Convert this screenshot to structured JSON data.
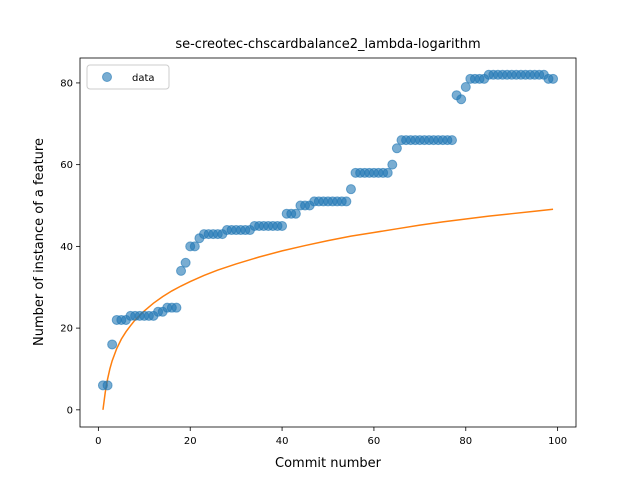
{
  "chart_data": {
    "type": "scatter",
    "title": "se-creotec-chscardbalance2_lambda-logarithm",
    "xlabel": "Commit number",
    "ylabel": "Number of instance of a feature",
    "xlim": [
      -4,
      104
    ],
    "ylim": [
      -4.2,
      86.1
    ],
    "xticks": [
      0,
      20,
      40,
      60,
      80,
      100
    ],
    "yticks": [
      0,
      20,
      40,
      60,
      80
    ],
    "legend": {
      "placement": "top-left",
      "entries": [
        "data"
      ]
    },
    "grid": false,
    "series": [
      {
        "name": "data",
        "kind": "scatter",
        "color": "#1f77b4",
        "x": [
          1,
          2,
          3,
          4,
          5,
          6,
          7,
          8,
          9,
          10,
          11,
          12,
          13,
          14,
          15,
          16,
          17,
          18,
          19,
          20,
          21,
          22,
          23,
          24,
          25,
          26,
          27,
          28,
          29,
          30,
          31,
          32,
          33,
          34,
          35,
          36,
          37,
          38,
          39,
          40,
          41,
          42,
          43,
          44,
          45,
          46,
          47,
          48,
          49,
          50,
          51,
          52,
          53,
          54,
          55,
          56,
          57,
          58,
          59,
          60,
          61,
          62,
          63,
          64,
          65,
          66,
          67,
          68,
          69,
          70,
          71,
          72,
          73,
          74,
          75,
          76,
          77,
          78,
          79,
          80,
          81,
          82,
          83,
          84,
          85,
          86,
          87,
          88,
          89,
          90,
          91,
          92,
          93,
          94,
          95,
          96,
          97,
          98,
          99
        ],
        "y": [
          6,
          6,
          16,
          22,
          22,
          22,
          23,
          23,
          23,
          23,
          23,
          23,
          24,
          24,
          25,
          25,
          25,
          34,
          36,
          40,
          40,
          42,
          43,
          43,
          43,
          43,
          43,
          44,
          44,
          44,
          44,
          44,
          44,
          45,
          45,
          45,
          45,
          45,
          45,
          45,
          48,
          48,
          48,
          50,
          50,
          50,
          51,
          51,
          51,
          51,
          51,
          51,
          51,
          51,
          54,
          58,
          58,
          58,
          58,
          58,
          58,
          58,
          58,
          60,
          64,
          66,
          66,
          66,
          66,
          66,
          66,
          66,
          66,
          66,
          66,
          66,
          66,
          77,
          76,
          79,
          81,
          81,
          81,
          81,
          82,
          82,
          82,
          82,
          82,
          82,
          82,
          82,
          82,
          82,
          82,
          82,
          82,
          81,
          81
        ]
      },
      {
        "kind": "line",
        "color": "#ff7f0e",
        "x": [
          1,
          1.5,
          2,
          2.5,
          3,
          4,
          5,
          6,
          7,
          8,
          10,
          12,
          14,
          16,
          18,
          20,
          23,
          26,
          30,
          35,
          40,
          45,
          50,
          55,
          60,
          65,
          70,
          75,
          80,
          85,
          90,
          95,
          99
        ],
        "y": [
          0,
          4.3,
          7.5,
          10,
          12,
          15,
          17.3,
          19.1,
          20.6,
          22,
          24.2,
          26.1,
          27.7,
          29.1,
          30.3,
          31.4,
          32.9,
          34.2,
          35.7,
          37.4,
          38.9,
          40.2,
          41.4,
          42.5,
          43.4,
          44.3,
          45.2,
          46,
          46.7,
          47.4,
          48,
          48.6,
          49.1
        ]
      }
    ]
  }
}
